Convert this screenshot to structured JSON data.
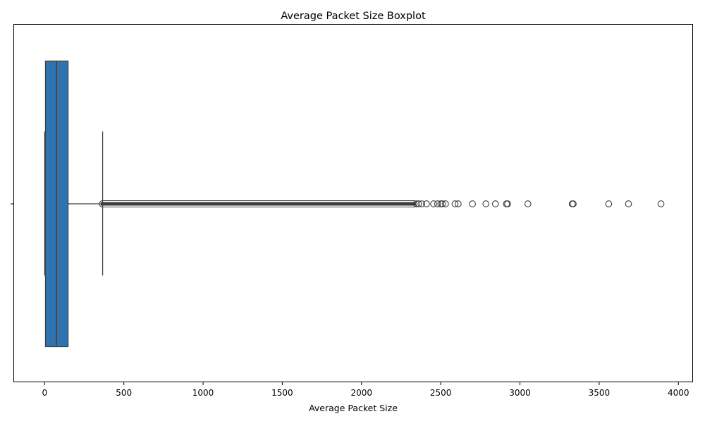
{
  "chart_data": {
    "type": "boxplot",
    "title": "Average Packet Size Boxplot",
    "xlabel": "Average Packet Size",
    "ylabel": "",
    "orientation": "horizontal",
    "xlim": [
      -195,
      4090
    ],
    "xticks": [
      0,
      500,
      1000,
      1500,
      2000,
      2500,
      3000,
      3500,
      4000
    ],
    "xtick_labels": [
      "0",
      "500",
      "1000",
      "1500",
      "2000",
      "2500",
      "3000",
      "3500",
      "4000"
    ],
    "grid": false,
    "box": {
      "whisker_low": 0,
      "q1": 5,
      "median": 74,
      "q3": 148,
      "whisker_high": 366,
      "fill_color": "#2f74b0",
      "line_color": "#3d3d3d"
    },
    "outlier_dense_range": [
      366,
      2330
    ],
    "outliers": [
      2345,
      2360,
      2380,
      2410,
      2455,
      2480,
      2500,
      2510,
      2530,
      2590,
      2610,
      2700,
      2785,
      2845,
      2915,
      2922,
      3050,
      3330,
      3336,
      3560,
      3685,
      3890
    ]
  }
}
